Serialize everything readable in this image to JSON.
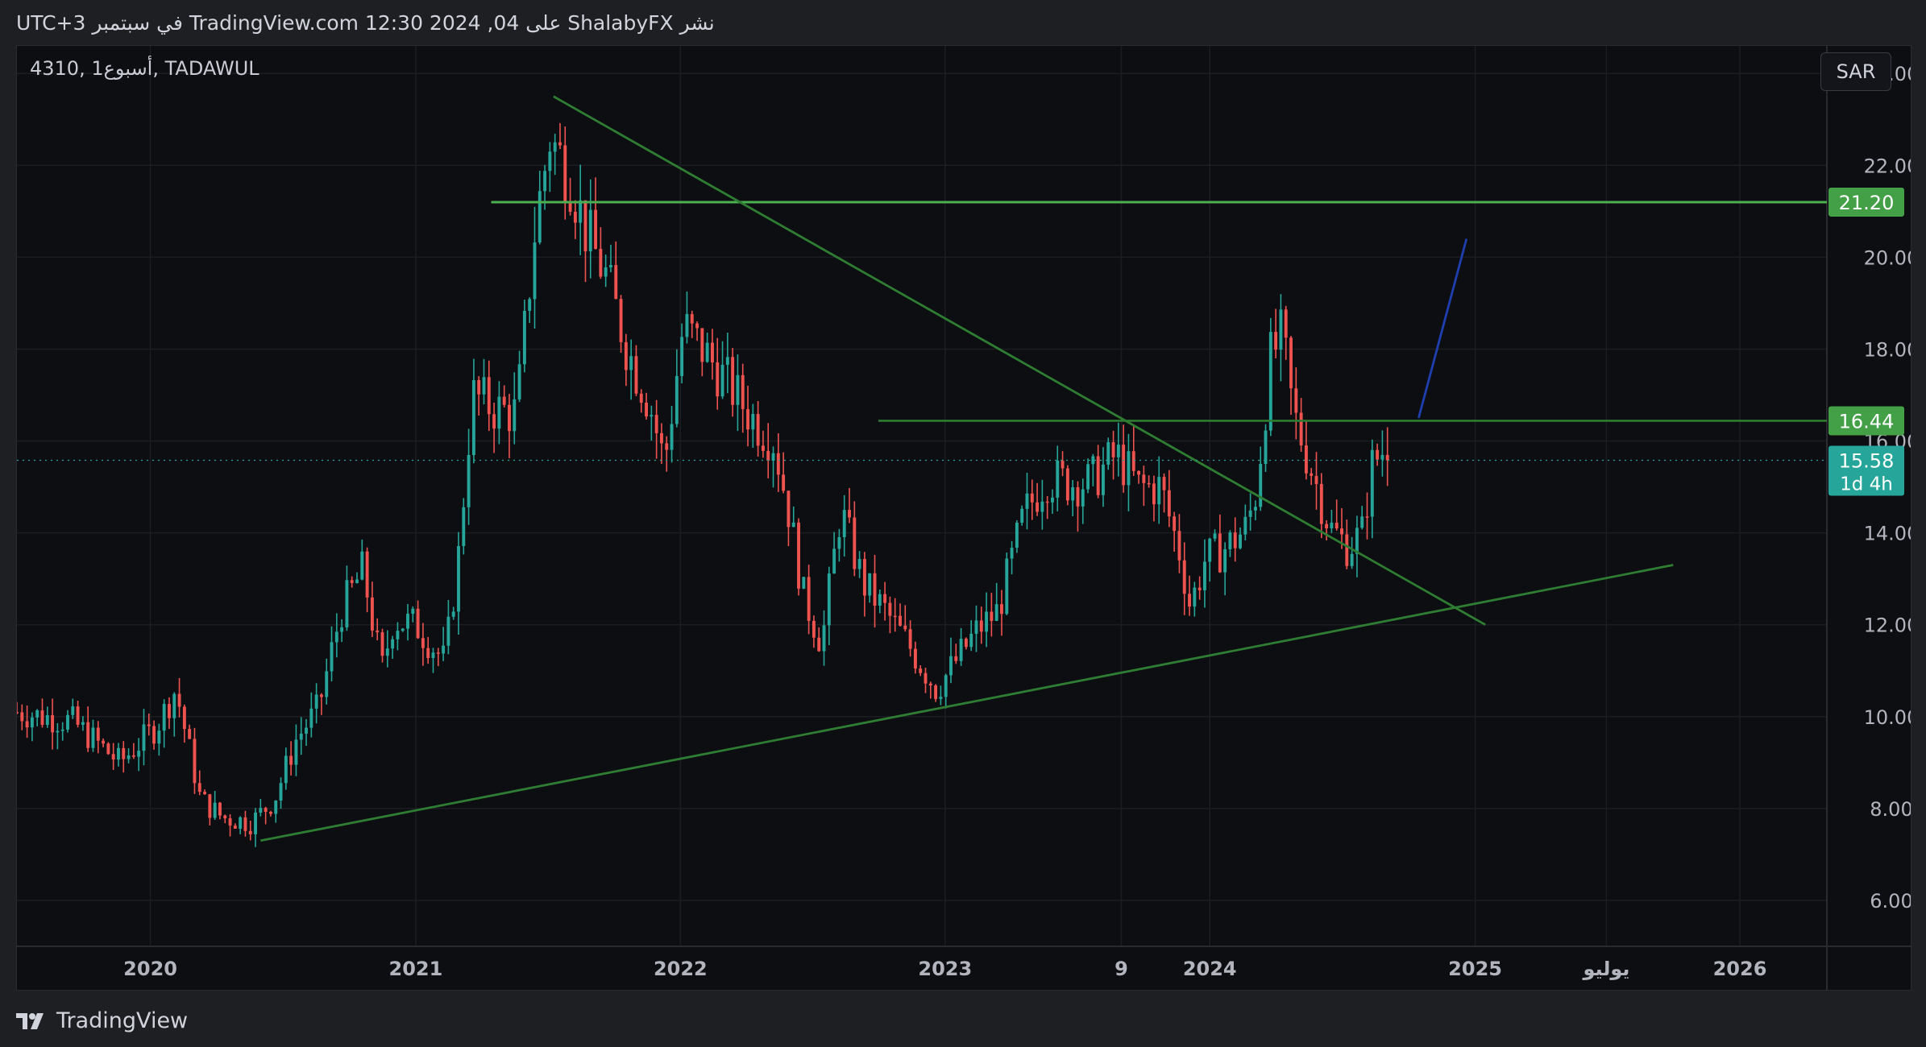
{
  "header": {
    "publish_text": "نشر ShalabyFX على TradingView.com 12:30 2024 ,04 في سبتمبر UTC+3"
  },
  "symbol_label": "4310, 1أسبوع, TADAWUL",
  "currency_label": "SAR",
  "footer": {
    "brand": "TradingView"
  },
  "colors": {
    "up": "#26a69a",
    "down": "#ef5350",
    "line_green_bright": "#4caf50",
    "line_green_dark": "#2e7d32",
    "line_blue": "#1e3fb0",
    "badge_green": "#43a047",
    "badge_teal": "#26a69a"
  },
  "chart_data": {
    "type": "candlestick",
    "timeframe": "weekly",
    "ylim": [
      5,
      24.6
    ],
    "y_ticks": [
      "6.00",
      "8.00",
      "10.00",
      "12.00",
      "14.00",
      "16.00",
      "18.00",
      "20.00",
      "22.00",
      "24.00"
    ],
    "x_labels": [
      "2020",
      "2021",
      "2022",
      "2023",
      "9",
      "2024",
      "2025",
      "يوليو",
      "2026"
    ],
    "x_label_dates": [
      "2020-01-01",
      "2021-01-01",
      "2022-01-01",
      "2023-01-01",
      "2023-09-01",
      "2024-01-01",
      "2025-01-01",
      "2025-07-01",
      "2026-01-01"
    ],
    "x_range": [
      "2019-07-01",
      "2026-05-01"
    ],
    "price_labels": [
      {
        "value": "21.20",
        "line": "21.20"
      },
      {
        "value": "16.44",
        "line": "16.44"
      },
      {
        "value": "15.58",
        "sub": "1d 4h",
        "line": "current"
      }
    ],
    "current_price": 15.58,
    "horizontal_lines": [
      {
        "name": "resistance-2120",
        "from": "2021-04-15",
        "price": 21.2
      },
      {
        "name": "resistance-1644",
        "from": "2022-10-01",
        "price": 16.44
      }
    ],
    "trend_lines": [
      {
        "name": "rising-support",
        "from": [
          "2020-06-01",
          7.3
        ],
        "to": [
          "2025-10-01",
          13.3
        ]
      },
      {
        "name": "falling-resistance",
        "from": [
          "2021-07-10",
          23.5
        ],
        "to": [
          "2025-01-15",
          12.0
        ]
      },
      {
        "name": "projection",
        "from": [
          "2024-10-15",
          16.5
        ],
        "to": [
          "2024-12-20",
          20.4
        ]
      }
    ],
    "close_anchors": [
      [
        "2019-07-01",
        10.1
      ],
      [
        "2019-09-15",
        9.9
      ],
      [
        "2019-11-20",
        9.0
      ],
      [
        "2020-01-10",
        9.8
      ],
      [
        "2020-02-05",
        10.6
      ],
      [
        "2020-03-10",
        8.2
      ],
      [
        "2020-04-10",
        7.8
      ],
      [
        "2020-05-20",
        7.7
      ],
      [
        "2020-06-20",
        8.2
      ],
      [
        "2020-07-20",
        9.5
      ],
      [
        "2020-08-20",
        10.2
      ],
      [
        "2020-09-20",
        12.3
      ],
      [
        "2020-10-20",
        13.2
      ],
      [
        "2020-11-15",
        11.0
      ],
      [
        "2020-12-01",
        12.1
      ],
      [
        "2021-01-01",
        12.0
      ],
      [
        "2021-02-10",
        11.2
      ],
      [
        "2021-03-01",
        13.5
      ],
      [
        "2021-03-20",
        17.0
      ],
      [
        "2021-04-20",
        16.7
      ],
      [
        "2021-05-20",
        16.6
      ],
      [
        "2021-06-15",
        20.7
      ],
      [
        "2021-07-05",
        22.6
      ],
      [
        "2021-08-01",
        21.8
      ],
      [
        "2021-08-25",
        20.5
      ],
      [
        "2021-09-20",
        19.6
      ],
      [
        "2021-10-20",
        18.0
      ],
      [
        "2021-11-20",
        16.8
      ],
      [
        "2021-12-10",
        15.5
      ],
      [
        "2022-01-05",
        18.5
      ],
      [
        "2022-02-10",
        17.8
      ],
      [
        "2022-03-10",
        17.2
      ],
      [
        "2022-04-10",
        16.5
      ],
      [
        "2022-05-10",
        16.0
      ],
      [
        "2022-05-30",
        14.5
      ],
      [
        "2022-06-20",
        12.6
      ],
      [
        "2022-07-15",
        11.6
      ],
      [
        "2022-08-10",
        14.5
      ],
      [
        "2022-09-10",
        12.9
      ],
      [
        "2022-10-10",
        12.3
      ],
      [
        "2022-11-10",
        11.6
      ],
      [
        "2022-12-20",
        10.6
      ],
      [
        "2023-01-20",
        11.3
      ],
      [
        "2023-02-15",
        11.9
      ],
      [
        "2023-03-15",
        12.3
      ],
      [
        "2023-04-20",
        14.4
      ],
      [
        "2023-05-20",
        15.2
      ],
      [
        "2023-06-20",
        15.1
      ],
      [
        "2023-07-20",
        15.1
      ],
      [
        "2023-08-25",
        15.7
      ],
      [
        "2023-09-25",
        15.0
      ],
      [
        "2023-10-25",
        15.0
      ],
      [
        "2023-11-20",
        13.6
      ],
      [
        "2023-12-05",
        12.4
      ],
      [
        "2023-12-25",
        13.4
      ],
      [
        "2024-01-25",
        13.7
      ],
      [
        "2024-02-20",
        14.1
      ],
      [
        "2024-03-05",
        14.9
      ],
      [
        "2024-03-25",
        17.8
      ],
      [
        "2024-04-10",
        18.3
      ],
      [
        "2024-04-25",
        16.6
      ],
      [
        "2024-05-20",
        15.4
      ],
      [
        "2024-06-15",
        14.1
      ],
      [
        "2024-07-10",
        13.7
      ],
      [
        "2024-07-30",
        14.0
      ],
      [
        "2024-08-10",
        15.4
      ],
      [
        "2024-08-25",
        15.8
      ],
      [
        "2024-09-04",
        15.58
      ]
    ]
  }
}
